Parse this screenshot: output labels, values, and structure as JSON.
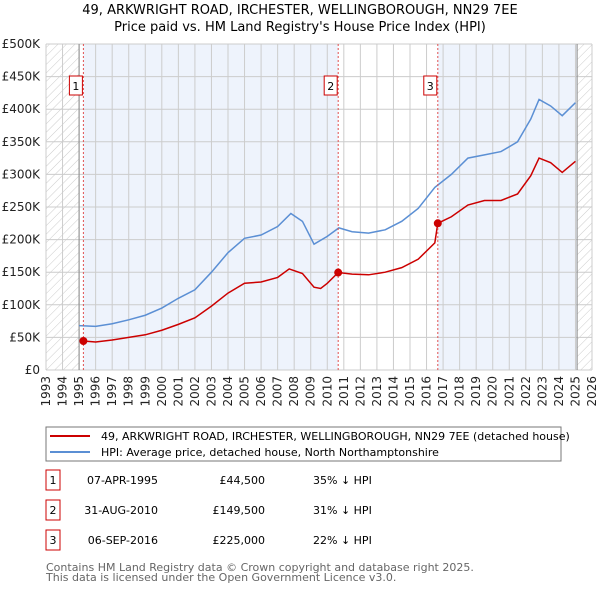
{
  "chart_data": {
    "type": "line",
    "title": "49, ARKWRIGHT ROAD, IRCHESTER, WELLINGBOROUGH, NN29 7EE",
    "subtitle": "Price paid vs. HM Land Registry's House Price Index (HPI)",
    "xlim": [
      1993,
      2026
    ],
    "ylim": [
      0,
      500000
    ],
    "x_ticks": [
      "1993",
      "1994",
      "1995",
      "1996",
      "1997",
      "1998",
      "1999",
      "2000",
      "2001",
      "2002",
      "2003",
      "2004",
      "2005",
      "2006",
      "2007",
      "2008",
      "2009",
      "2010",
      "2011",
      "2012",
      "2013",
      "2014",
      "2015",
      "2016",
      "2017",
      "2018",
      "2019",
      "2020",
      "2021",
      "2022",
      "2023",
      "2024",
      "2025",
      "2026"
    ],
    "y_ticks": [
      {
        "v": 0,
        "label": "£0"
      },
      {
        "v": 50000,
        "label": "£50K"
      },
      {
        "v": 100000,
        "label": "£100K"
      },
      {
        "v": 150000,
        "label": "£150K"
      },
      {
        "v": 200000,
        "label": "£200K"
      },
      {
        "v": 250000,
        "label": "£250K"
      },
      {
        "v": 300000,
        "label": "£300K"
      },
      {
        "v": 350000,
        "label": "£350K"
      },
      {
        "v": 400000,
        "label": "£400K"
      },
      {
        "v": 450000,
        "label": "£450K"
      },
      {
        "v": 500000,
        "label": "£500K"
      }
    ],
    "grid": true,
    "series": [
      {
        "name": "49, ARKWRIGHT ROAD, IRCHESTER, WELLINGBOROUGH, NN29 7EE (detached house)",
        "color": "#cc0000",
        "x": [
          1995.26,
          1996,
          1997,
          1998,
          1999,
          2000,
          2001,
          2002,
          2003,
          2004,
          2005,
          2006,
          2007,
          2007.7,
          2008.5,
          2009.2,
          2009.6,
          2010,
          2010.66,
          2011.5,
          2012.5,
          2013.5,
          2014.5,
          2015.5,
          2016.5,
          2016.68,
          2017.5,
          2018.5,
          2019.5,
          2020.5,
          2021.5,
          2022.3,
          2022.8,
          2023.5,
          2024.2,
          2025
        ],
        "y": [
          44500,
          43000,
          46000,
          50000,
          54000,
          61000,
          70000,
          80000,
          98000,
          118000,
          133000,
          135000,
          142000,
          155000,
          148000,
          127000,
          125000,
          133000,
          149500,
          147000,
          146000,
          150000,
          157000,
          170000,
          195000,
          225000,
          235000,
          253000,
          260000,
          260000,
          270000,
          298000,
          325000,
          318000,
          303000,
          320000
        ]
      },
      {
        "name": "HPI: Average price, detached house, North Northamptonshire",
        "color": "#5b8fd4",
        "x": [
          1995,
          1996,
          1997,
          1998,
          1999,
          2000,
          2001,
          2002,
          2003,
          2004,
          2005,
          2006,
          2007,
          2007.8,
          2008.5,
          2009.2,
          2010,
          2010.7,
          2011.5,
          2012.5,
          2013.5,
          2014.5,
          2015.5,
          2016.5,
          2017.5,
          2018.5,
          2019.5,
          2020.5,
          2021.5,
          2022.3,
          2022.8,
          2023.5,
          2024.2,
          2025
        ],
        "y": [
          68000,
          67000,
          71000,
          77000,
          84000,
          95000,
          110000,
          123000,
          150000,
          180000,
          202000,
          207000,
          220000,
          240000,
          228000,
          193000,
          205000,
          218000,
          212000,
          210000,
          215000,
          228000,
          248000,
          280000,
          300000,
          325000,
          330000,
          335000,
          350000,
          385000,
          415000,
          405000,
          390000,
          410000
        ]
      }
    ],
    "sales": [
      {
        "n": "1",
        "x": 1995.26,
        "y": 44500
      },
      {
        "n": "2",
        "x": 2010.66,
        "y": 149500
      },
      {
        "n": "3",
        "x": 2016.68,
        "y": 225000
      }
    ],
    "data_end": 2025.1,
    "legend_placement": "bottom"
  },
  "table": [
    {
      "n": "1",
      "date": "07-APR-1995",
      "price": "£44,500",
      "hpi": "35% ↓ HPI"
    },
    {
      "n": "2",
      "date": "31-AUG-2010",
      "price": "£149,500",
      "hpi": "31% ↓ HPI"
    },
    {
      "n": "3",
      "date": "06-SEP-2016",
      "price": "£225,000",
      "hpi": "22% ↓ HPI"
    }
  ],
  "footer": [
    "Contains HM Land Registry data © Crown copyright and database right 2025.",
    "This data is licensed under the Open Government Licence v3.0."
  ]
}
